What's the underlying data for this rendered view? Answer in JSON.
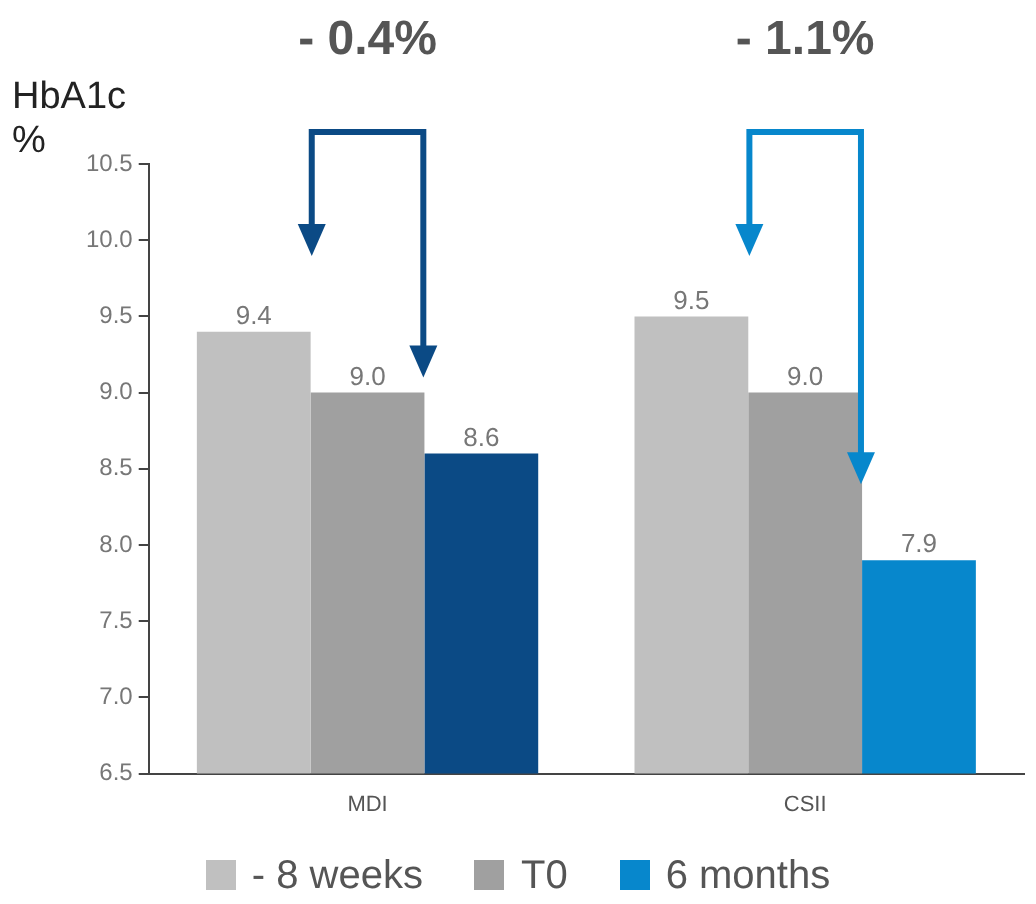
{
  "chart_data": {
    "type": "bar",
    "ylabel": "HbA1c %",
    "categories": [
      "MDI",
      "CSII"
    ],
    "series": [
      {
        "name": "- 8 weeks",
        "color": "#c0c0c0",
        "values": [
          9.4,
          9.5
        ],
        "value_labels": [
          "9.4",
          "9.5"
        ]
      },
      {
        "name": "T0",
        "color": "#a0a0a0",
        "values": [
          9.0,
          9.0
        ],
        "value_labels": [
          "9.0",
          "9.0"
        ]
      },
      {
        "name": "6 months",
        "color": "#0787cc",
        "colors": [
          "#0b4a85",
          "#0787cc"
        ],
        "values": [
          8.6,
          7.9
        ],
        "value_labels": [
          "8.6",
          "7.9"
        ]
      }
    ],
    "ylim": [
      6.5,
      10.5
    ],
    "yticks": [
      {
        "value": 6.5,
        "label": "6.5"
      },
      {
        "value": 7,
        "label": "7.0"
      },
      {
        "value": 7.5,
        "label": "7.5"
      },
      {
        "value": 8,
        "label": "8.0"
      },
      {
        "value": 8.5,
        "label": "8.5"
      },
      {
        "value": 9,
        "label": "9.0"
      },
      {
        "value": 9.5,
        "label": "9.5"
      },
      {
        "value": 10,
        "label": "10.0"
      },
      {
        "value": 10.5,
        "label": "10.5"
      }
    ],
    "annotations": [
      "- 0.4%",
      "- 1.1%"
    ],
    "grid": false,
    "legend": "bottom"
  }
}
